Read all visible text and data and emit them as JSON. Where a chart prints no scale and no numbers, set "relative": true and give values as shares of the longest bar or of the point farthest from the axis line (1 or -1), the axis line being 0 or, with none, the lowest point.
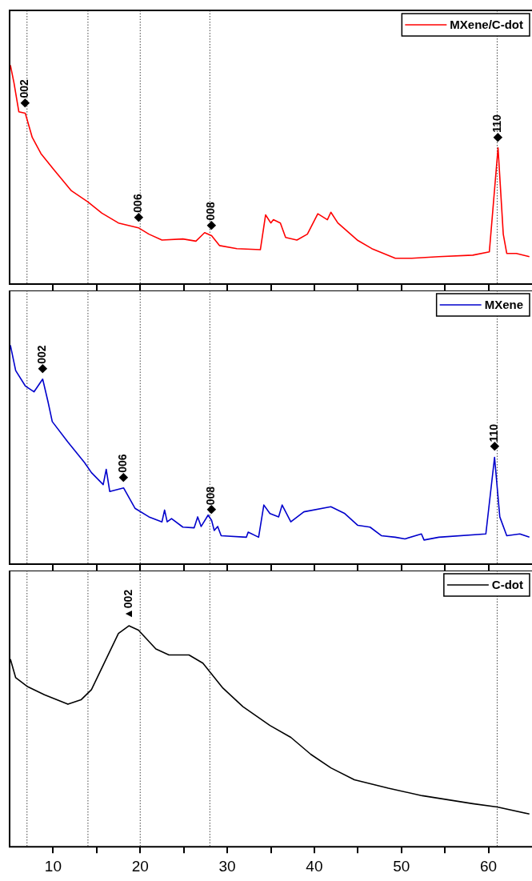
{
  "chart_data": [
    {
      "type": "line",
      "relative": true,
      "legend": "top right",
      "tick_labels": false,
      "xlim": [
        5,
        65
      ],
      "xticks": [
        10,
        {
          "value": 15,
          "label": null
        },
        20,
        {
          "value": 25,
          "label": null
        },
        30,
        {
          "value": 35,
          "label": null
        },
        40,
        {
          "value": 45,
          "label": null
        },
        50,
        {
          "value": 55,
          "label": null
        },
        60
      ],
      "series": [
        {
          "name": "MXene/C-dot",
          "color": "#ff0000",
          "x": [
            5.09,
            5.5,
            6.06,
            6.8,
            7.6,
            8.6,
            10.1,
            12.1,
            14,
            15.6,
            17.5,
            19.8,
            21,
            22.5,
            24.9,
            26.4,
            27.4,
            28.2,
            29.1,
            31.1,
            33.8,
            34.4,
            35,
            35.3,
            36.1,
            36.7,
            38,
            39.2,
            40.4,
            41.5,
            41.9,
            42.7,
            45,
            46.6,
            49.3,
            51.2,
            54.3,
            58.2,
            60.1,
            61.1,
            61.7,
            62.1,
            63.2,
            64.7
          ],
          "values": [
            1.0,
            0.92,
            0.787,
            0.78,
            0.67,
            0.596,
            0.522,
            0.426,
            0.375,
            0.324,
            0.279,
            0.257,
            0.228,
            0.201,
            0.206,
            0.196,
            0.235,
            0.221,
            0.176,
            0.162,
            0.157,
            0.316,
            0.279,
            0.294,
            0.279,
            0.213,
            0.201,
            0.228,
            0.321,
            0.294,
            0.328,
            0.279,
            0.199,
            0.162,
            0.118,
            0.118,
            0.125,
            0.132,
            0.147,
            0.622,
            0.228,
            0.14,
            0.14,
            0.125
          ]
        }
      ],
      "ref_lines": [
        {
          "axis": "x",
          "value": 7,
          "line_style": "dotted"
        },
        {
          "axis": "x",
          "value": 14,
          "line_style": "dotted"
        },
        {
          "axis": "x",
          "value": 20,
          "line_style": "dotted"
        },
        {
          "axis": "x",
          "value": 28,
          "line_style": "dotted"
        },
        {
          "axis": "x",
          "value": 61,
          "line_style": "dotted"
        }
      ],
      "annotations": [
        {
          "text": "◆002",
          "x": 6.8,
          "y": 0.78
        },
        {
          "text": "◆006",
          "x": 19.8,
          "y": 0.257
        },
        {
          "text": "◆008",
          "x": 28.2,
          "y": 0.221
        },
        {
          "text": "◆110",
          "x": 61.1,
          "y": 0.622
        }
      ]
    },
    {
      "type": "line",
      "relative": true,
      "legend": "top right",
      "tick_labels": false,
      "xlim": [
        5,
        65
      ],
      "xticks": [
        10,
        {
          "value": 15,
          "label": null
        },
        20,
        {
          "value": 25,
          "label": null
        },
        30,
        {
          "value": 35,
          "label": null
        },
        40,
        {
          "value": 45,
          "label": null
        },
        50,
        {
          "value": 55,
          "label": null
        },
        60
      ],
      "series": [
        {
          "name": "MXene",
          "color": "#0000cc",
          "x": [
            5.09,
            5.7,
            6.8,
            7.8,
            8.8,
            9.4,
            9.9,
            11.7,
            13.6,
            14.4,
            15.75,
            16.1,
            16.5,
            18.1,
            19.4,
            21,
            22.5,
            22.8,
            23.1,
            23.6,
            24.9,
            26.2,
            26.6,
            27,
            27.8,
            28.2,
            28.5,
            28.9,
            29.3,
            32.2,
            32.4,
            33.6,
            34.2,
            34.9,
            35.9,
            36.3,
            37.3,
            38.8,
            41.9,
            43.5,
            45,
            46.4,
            47.7,
            49.3,
            50.4,
            52.3,
            52.6,
            54.3,
            59.7,
            60.7,
            61.3,
            62.1,
            63.6,
            64.7
          ],
          "values": [
            1.0,
            0.884,
            0.814,
            0.787,
            0.845,
            0.744,
            0.651,
            0.557,
            0.464,
            0.418,
            0.363,
            0.433,
            0.332,
            0.348,
            0.255,
            0.216,
            0.193,
            0.247,
            0.193,
            0.208,
            0.169,
            0.166,
            0.216,
            0.172,
            0.224,
            0.2,
            0.154,
            0.172,
            0.13,
            0.123,
            0.146,
            0.123,
            0.27,
            0.231,
            0.216,
            0.27,
            0.193,
            0.239,
            0.262,
            0.231,
            0.177,
            0.169,
            0.13,
            0.123,
            0.115,
            0.138,
            0.11,
            0.123,
            0.138,
            0.488,
            0.216,
            0.13,
            0.138,
            0.123
          ]
        }
      ],
      "ref_lines": [
        {
          "axis": "x",
          "value": 7,
          "line_style": "dotted"
        },
        {
          "axis": "x",
          "value": 14,
          "line_style": "dotted"
        },
        {
          "axis": "x",
          "value": 20,
          "line_style": "dotted"
        },
        {
          "axis": "x",
          "value": 28,
          "line_style": "dotted"
        },
        {
          "axis": "x",
          "value": 61,
          "line_style": "dotted"
        }
      ],
      "annotations": [
        {
          "text": "◆002",
          "x": 8.8,
          "y": 0.845
        },
        {
          "text": "◆006",
          "x": 18.1,
          "y": 0.348
        },
        {
          "text": "◆008",
          "x": 28.2,
          "y": 0.2
        },
        {
          "text": "◆110",
          "x": 60.7,
          "y": 0.488
        }
      ]
    },
    {
      "type": "line",
      "relative": true,
      "legend": "top right",
      "tick_labels": "x",
      "xlim": [
        5,
        65
      ],
      "xticks": [
        10,
        {
          "value": 15,
          "label": null
        },
        20,
        {
          "value": 25,
          "label": null
        },
        30,
        {
          "value": 35,
          "label": null
        },
        40,
        {
          "value": 45,
          "label": null
        },
        50,
        {
          "value": 55,
          "label": null
        },
        60
      ],
      "series": [
        {
          "name": "C-dot",
          "color": "#000000",
          "x": [
            5.09,
            5.7,
            7.0,
            9,
            11.7,
            13.2,
            14.4,
            15.9,
            17.5,
            18.7,
            19.8,
            21.8,
            23.3,
            25.6,
            27.2,
            29.5,
            31.8,
            34.9,
            37.3,
            39.6,
            41.9,
            44.6,
            48.5,
            52.4,
            58.2,
            61,
            64.7
          ],
          "values": [
            0.849,
            0.765,
            0.726,
            0.688,
            0.645,
            0.665,
            0.711,
            0.834,
            0.965,
            1.0,
            0.98,
            0.895,
            0.868,
            0.868,
            0.831,
            0.718,
            0.634,
            0.549,
            0.495,
            0.418,
            0.357,
            0.303,
            0.265,
            0.231,
            0.195,
            0.18,
            0.148
          ]
        }
      ],
      "ref_lines": [
        {
          "axis": "x",
          "value": 7,
          "line_style": "dotted"
        },
        {
          "axis": "x",
          "value": 14,
          "line_style": "dotted"
        },
        {
          "axis": "x",
          "value": 20,
          "line_style": "dotted"
        },
        {
          "axis": "x",
          "value": 28,
          "line_style": "dotted"
        },
        {
          "axis": "x",
          "value": 61,
          "line_style": "dotted"
        }
      ],
      "annotations": [
        {
          "text": "▲002",
          "x": 18.7,
          "y": 1.0
        }
      ]
    }
  ]
}
